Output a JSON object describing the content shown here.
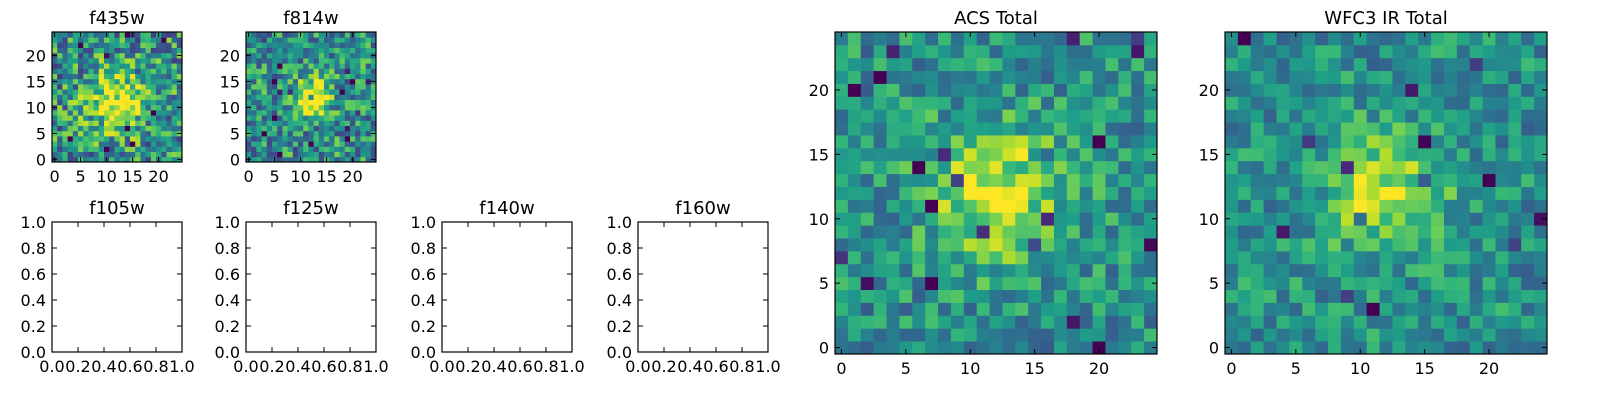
{
  "chart_data": [
    {
      "type": "heatmap",
      "title": "f435w",
      "grid_size": 25,
      "colormap": "viridis",
      "peak": [
        12,
        11
      ],
      "sigma": 4.0,
      "peak_level": 0.5,
      "noise": 0.34,
      "seed": 11,
      "x_ticks": [
        "0",
        "5",
        "10",
        "15",
        "20"
      ],
      "y_ticks": [
        "0",
        "5",
        "10",
        "15",
        "20"
      ],
      "xlim": [
        -0.5,
        24.5
      ],
      "ylim": [
        -0.5,
        24.5
      ]
    },
    {
      "type": "heatmap",
      "title": "f814w",
      "grid_size": 25,
      "colormap": "viridis",
      "peak": [
        12,
        12
      ],
      "sigma": 2.6,
      "peak_level": 0.55,
      "noise": 0.3,
      "seed": 23,
      "x_ticks": [
        "0",
        "5",
        "10",
        "15",
        "20"
      ],
      "y_ticks": [
        "0",
        "5",
        "10",
        "15",
        "20"
      ],
      "xlim": [
        -0.5,
        24.5
      ],
      "ylim": [
        -0.5,
        24.5
      ]
    },
    {
      "type": "empty",
      "title": "f105w",
      "x_ticks": [
        "0.0",
        "0.2",
        "0.4",
        "0.6",
        "0.8",
        "1.0"
      ],
      "y_ticks": [
        "0.0",
        "0.2",
        "0.4",
        "0.6",
        "0.8",
        "1.0"
      ],
      "xlim": [
        0,
        1
      ],
      "ylim": [
        0,
        1
      ]
    },
    {
      "type": "empty",
      "title": "f125w",
      "x_ticks": [
        "0.0",
        "0.2",
        "0.4",
        "0.6",
        "0.8",
        "1.0"
      ],
      "y_ticks": [
        "0.0",
        "0.2",
        "0.4",
        "0.6",
        "0.8",
        "1.0"
      ],
      "xlim": [
        0,
        1
      ],
      "ylim": [
        0,
        1
      ]
    },
    {
      "type": "empty",
      "title": "f140w",
      "x_ticks": [
        "0.0",
        "0.2",
        "0.4",
        "0.6",
        "0.8",
        "1.0"
      ],
      "y_ticks": [
        "0.0",
        "0.2",
        "0.4",
        "0.6",
        "0.8",
        "1.0"
      ],
      "xlim": [
        0,
        1
      ],
      "ylim": [
        0,
        1
      ]
    },
    {
      "type": "empty",
      "title": "f160w",
      "x_ticks": [
        "0.0",
        "0.2",
        "0.4",
        "0.6",
        "0.8",
        "1.0"
      ],
      "y_ticks": [
        "0.0",
        "0.2",
        "0.4",
        "0.6",
        "0.8",
        "1.0"
      ],
      "xlim": [
        0,
        1
      ],
      "ylim": [
        0,
        1
      ]
    },
    {
      "type": "heatmap",
      "title": "ACS Total",
      "grid_size": 25,
      "colormap": "viridis",
      "peak": [
        12,
        12
      ],
      "sigma": 3.6,
      "peak_level": 0.45,
      "noise": 0.22,
      "seed": 37,
      "x_ticks": [
        "0",
        "5",
        "10",
        "15",
        "20"
      ],
      "y_ticks": [
        "0",
        "5",
        "10",
        "15",
        "20"
      ],
      "xlim": [
        -0.5,
        24.5
      ],
      "ylim": [
        -0.5,
        24.5
      ]
    },
    {
      "type": "heatmap",
      "title": "WFC3 IR Total",
      "grid_size": 25,
      "colormap": "viridis",
      "peak": [
        12,
        12
      ],
      "sigma": 3.2,
      "peak_level": 0.4,
      "noise": 0.2,
      "seed": 53,
      "x_ticks": [
        "0",
        "5",
        "10",
        "15",
        "20"
      ],
      "y_ticks": [
        "0",
        "5",
        "10",
        "15",
        "20"
      ],
      "xlim": [
        -0.5,
        24.5
      ],
      "ylim": [
        -0.5,
        24.5
      ]
    }
  ],
  "colors": {
    "axes": "#000000",
    "background": "#ffffff"
  }
}
